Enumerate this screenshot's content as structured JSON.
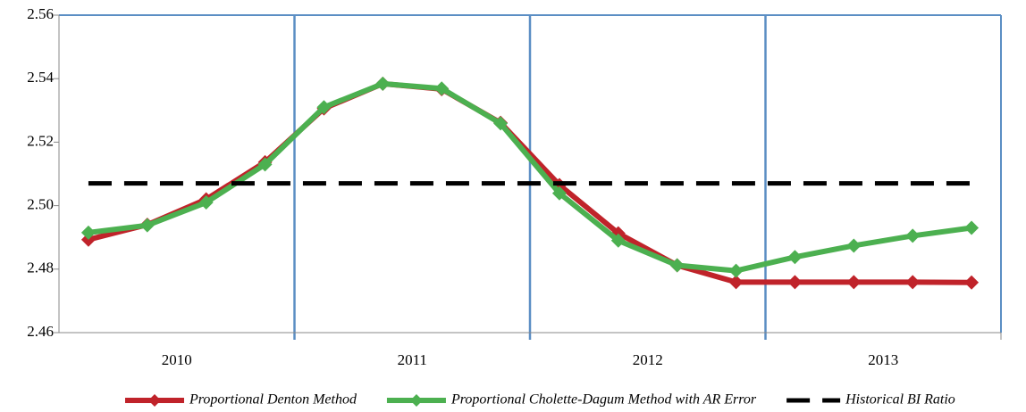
{
  "chart_data": {
    "type": "line",
    "categories": [
      null,
      null,
      null,
      null,
      null,
      null,
      null,
      null,
      null,
      null,
      null,
      null,
      null,
      null,
      null,
      null
    ],
    "groups": [
      "2010",
      "2011",
      "2012",
      "2013"
    ],
    "ylim": [
      2.46,
      2.56
    ],
    "yticks": [
      {
        "value": 2.46,
        "label": "2.46"
      },
      {
        "value": 2.48,
        "label": "2.48"
      },
      {
        "value": 2.5,
        "label": "2.50"
      },
      {
        "value": 2.52,
        "label": "2.52"
      },
      {
        "value": 2.54,
        "label": "2.54"
      },
      {
        "value": 2.56,
        "label": "2.56"
      }
    ],
    "series": [
      {
        "name": "Proportional Denton Method",
        "color": "#c0232a",
        "marker": "diamond",
        "values": [
          2.4893,
          2.494,
          2.502,
          2.5137,
          2.5306,
          2.5384,
          2.5367,
          2.5261,
          2.5065,
          2.4913,
          2.4812,
          2.4759,
          2.4759,
          2.4759,
          2.4759,
          2.4758
        ]
      },
      {
        "name": "Proportional Cholette-Dagum Method with AR Error",
        "color": "#4cb050",
        "marker": "diamond",
        "values": [
          2.4915,
          2.4938,
          2.501,
          2.513,
          2.531,
          2.5384,
          2.5369,
          2.5259,
          2.5039,
          2.489,
          2.4812,
          2.4795,
          2.4838,
          2.4874,
          2.4905,
          2.493
        ]
      },
      {
        "name": "Historical BI Ratio",
        "color": "#000000",
        "dashed": true,
        "values": [
          2.507,
          2.507,
          2.507,
          2.507,
          2.507,
          2.507,
          2.507,
          2.507,
          2.507,
          2.507,
          2.507,
          2.507,
          2.507,
          2.507,
          2.507,
          2.507
        ]
      }
    ]
  }
}
